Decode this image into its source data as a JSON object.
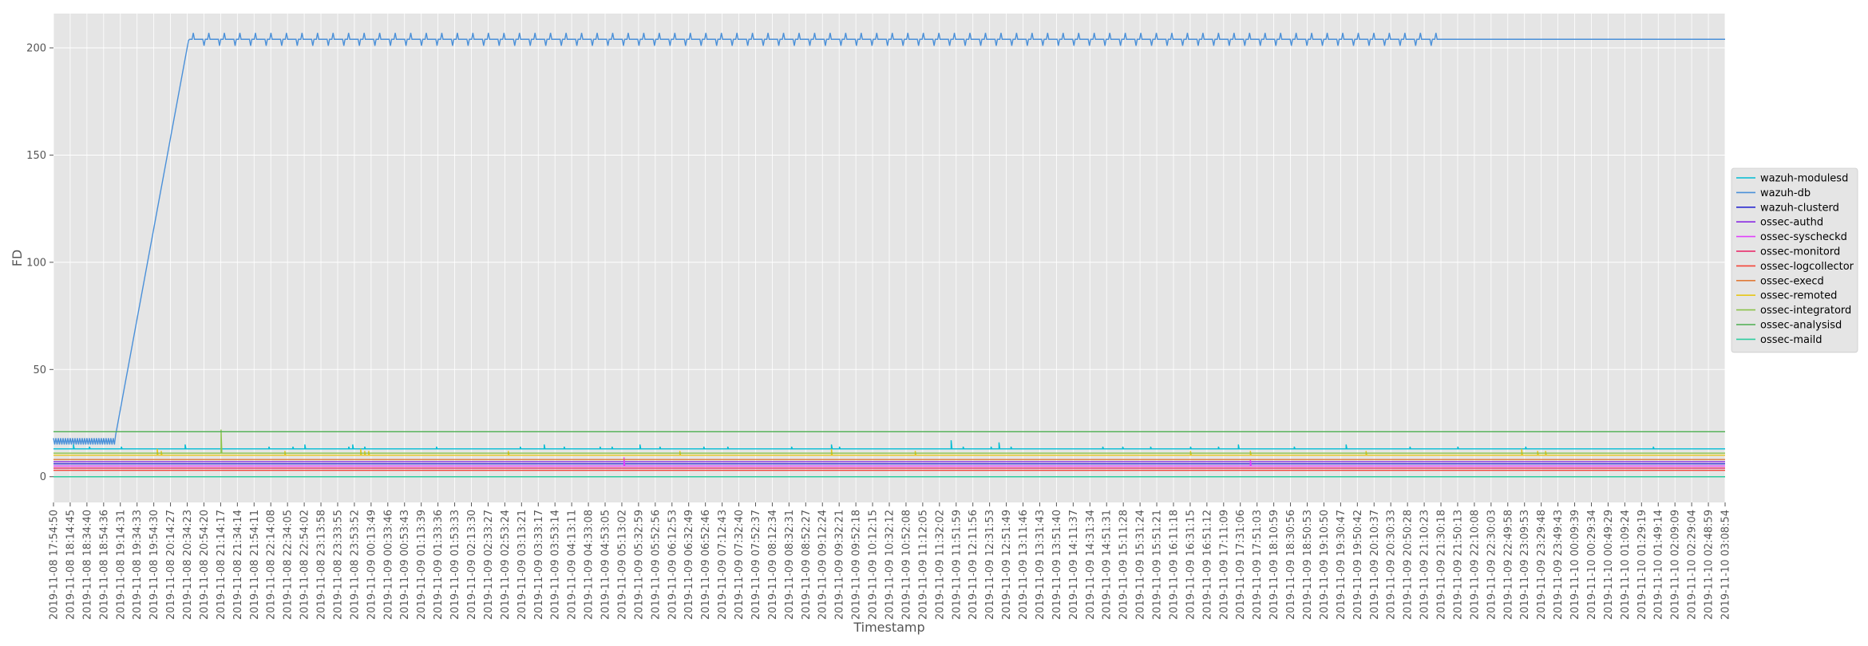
{
  "chart_data": {
    "type": "line",
    "xlabel": "Timestamp",
    "ylabel": "FD",
    "ylim": [
      -12,
      216
    ],
    "yticks": [
      0,
      50,
      100,
      150,
      200
    ],
    "grid": true,
    "legend_position": "right",
    "x_tick_labels": [
      "2019-11-08 17:54:50",
      "2019-11-08 18:14:45",
      "2019-11-08 18:34:40",
      "2019-11-08 18:54:36",
      "2019-11-08 19:14:31",
      "2019-11-08 19:34:33",
      "2019-11-08 19:54:30",
      "2019-11-08 20:14:27",
      "2019-11-08 20:34:23",
      "2019-11-08 20:54:20",
      "2019-11-08 21:14:17",
      "2019-11-08 21:34:14",
      "2019-11-08 21:54:11",
      "2019-11-08 22:14:08",
      "2019-11-08 22:34:05",
      "2019-11-08 22:54:02",
      "2019-11-08 23:13:58",
      "2019-11-08 23:33:55",
      "2019-11-08 23:53:52",
      "2019-11-09 00:13:49",
      "2019-11-09 00:33:46",
      "2019-11-09 00:53:43",
      "2019-11-09 01:13:39",
      "2019-11-09 01:33:36",
      "2019-11-09 01:53:33",
      "2019-11-09 02:13:30",
      "2019-11-09 02:33:27",
      "2019-11-09 02:53:24",
      "2019-11-09 03:13:21",
      "2019-11-09 03:33:17",
      "2019-11-09 03:53:14",
      "2019-11-09 04:13:11",
      "2019-11-09 04:33:08",
      "2019-11-09 04:53:05",
      "2019-11-09 05:13:02",
      "2019-11-09 05:32:59",
      "2019-11-09 05:52:56",
      "2019-11-09 06:12:53",
      "2019-11-09 06:32:49",
      "2019-11-09 06:52:46",
      "2019-11-09 07:12:43",
      "2019-11-09 07:32:40",
      "2019-11-09 07:52:37",
      "2019-11-09 08:12:34",
      "2019-11-09 08:32:31",
      "2019-11-09 08:52:27",
      "2019-11-09 09:12:24",
      "2019-11-09 09:32:21",
      "2019-11-09 09:52:18",
      "2019-11-09 10:12:15",
      "2019-11-09 10:32:12",
      "2019-11-09 10:52:08",
      "2019-11-09 11:12:05",
      "2019-11-09 11:32:02",
      "2019-11-09 11:51:59",
      "2019-11-09 12:11:56",
      "2019-11-09 12:31:53",
      "2019-11-09 12:51:49",
      "2019-11-09 13:11:46",
      "2019-11-09 13:31:43",
      "2019-11-09 13:51:40",
      "2019-11-09 14:11:37",
      "2019-11-09 14:31:34",
      "2019-11-09 14:51:31",
      "2019-11-09 15:11:28",
      "2019-11-09 15:31:24",
      "2019-11-09 15:51:21",
      "2019-11-09 16:11:18",
      "2019-11-09 16:31:15",
      "2019-11-09 16:51:12",
      "2019-11-09 17:11:09",
      "2019-11-09 17:31:06",
      "2019-11-09 17:51:03",
      "2019-11-09 18:10:59",
      "2019-11-09 18:30:56",
      "2019-11-09 18:50:53",
      "2019-11-09 19:10:50",
      "2019-11-09 19:30:47",
      "2019-11-09 19:50:42",
      "2019-11-09 20:10:37",
      "2019-11-09 20:30:33",
      "2019-11-09 20:50:28",
      "2019-11-09 21:10:23",
      "2019-11-09 21:30:18",
      "2019-11-09 21:50:13",
      "2019-11-09 22:10:08",
      "2019-11-09 22:30:03",
      "2019-11-09 22:49:58",
      "2019-11-09 23:09:53",
      "2019-11-09 23:29:48",
      "2019-11-09 23:49:43",
      "2019-11-10 00:09:39",
      "2019-11-10 00:29:34",
      "2019-11-10 00:49:29",
      "2019-11-10 01:09:24",
      "2019-11-10 01:29:19",
      "2019-11-10 01:49:14",
      "2019-11-10 02:09:09",
      "2019-11-10 02:29:04",
      "2019-11-10 02:48:59",
      "2019-11-10 03:08:54"
    ],
    "series": [
      {
        "name": "wazuh-modulesd",
        "color": "#00bcd4",
        "base": 13,
        "spike_positions": [
          5,
          9,
          17,
          33,
          54,
          60,
          63,
          74,
          75,
          78,
          96,
          117,
          123,
          128,
          137,
          140,
          147,
          152,
          163,
          169,
          185,
          195,
          197,
          225,
          228,
          235,
          237,
          240,
          263,
          268,
          275,
          285,
          292,
          297,
          311,
          324,
          340,
          352,
          369,
          401
        ],
        "spike_values": [
          15,
          14,
          14,
          15,
          14,
          14,
          15,
          14,
          15,
          14,
          14,
          14,
          15,
          14,
          14,
          14,
          15,
          14,
          14,
          14,
          14,
          15,
          14,
          17,
          14,
          14,
          16,
          14,
          14,
          14,
          14,
          14,
          14,
          15,
          14,
          15,
          14,
          14,
          14,
          14
        ]
      },
      {
        "name": "wazuh-db",
        "color": "#4a90d9"
      },
      {
        "name": "wazuh-clusterd",
        "color": "#2b2bd1",
        "value": 6
      },
      {
        "name": "ossec-authd",
        "color": "#8a2be2",
        "value": 7
      },
      {
        "name": "ossec-syscheckd",
        "color": "#e040fb",
        "value": 5,
        "spikes": [
          [
            143,
            9
          ],
          [
            300,
            8
          ]
        ]
      },
      {
        "name": "ossec-monitord",
        "color": "#e91e63",
        "value": 4
      },
      {
        "name": "ossec-logcollector",
        "color": "#f44336",
        "value": 3
      },
      {
        "name": "ossec-execd",
        "color": "#e07b39",
        "value": 8
      },
      {
        "name": "ossec-remoted",
        "color": "#e6c619",
        "base": 10,
        "spike_positions": [
          26,
          27,
          58,
          77,
          78,
          79,
          114,
          157,
          195,
          216,
          285,
          300,
          329,
          368,
          372,
          374
        ],
        "spike_values": [
          13,
          12,
          12,
          13,
          12,
          12,
          12,
          12,
          13,
          12,
          12,
          12,
          12,
          13,
          12,
          12
        ]
      },
      {
        "name": "ossec-integratord",
        "color": "#8bc34a",
        "value": 11,
        "spikes": [
          [
            42,
            22
          ]
        ]
      },
      {
        "name": "ossec-analysisd",
        "color": "#4caf50",
        "value": 21
      },
      {
        "name": "ossec-maild",
        "color": "#2ecc9f",
        "value": 0
      }
    ]
  }
}
